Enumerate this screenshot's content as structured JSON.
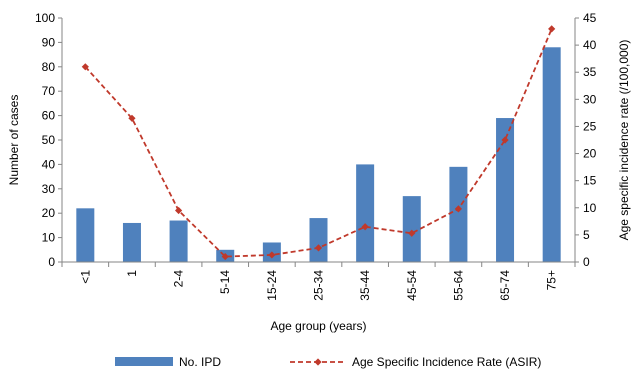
{
  "chart_data": {
    "type": "bar",
    "title": "",
    "xlabel": "Age group (years)",
    "ylabel": "Number of cases",
    "y2label": "Age specific incidence rate (/100,000)",
    "ylim": [
      0,
      100
    ],
    "y2lim": [
      0,
      45
    ],
    "yticks": [
      0,
      10,
      20,
      30,
      40,
      50,
      60,
      70,
      80,
      90,
      100
    ],
    "y2ticks": [
      0,
      5,
      10,
      15,
      20,
      25,
      30,
      35,
      40,
      45
    ],
    "categories": [
      "<1",
      "1",
      "2-4",
      "5-14",
      "15-24",
      "25-34",
      "35-44",
      "45-54",
      "55-64",
      "65-74",
      "75+"
    ],
    "series": [
      {
        "name": "No. IPD",
        "kind": "bar",
        "axis": "left",
        "color": "#4f81bd",
        "values": [
          22,
          16,
          17,
          5,
          8,
          18,
          40,
          27,
          39,
          59,
          88
        ]
      },
      {
        "name": "Age Specific Incidence Rate (ASIR)",
        "kind": "line",
        "axis": "right",
        "color": "#c0392b",
        "values": [
          36,
          26.5,
          9.5,
          1,
          1.3,
          2.6,
          6.5,
          5.3,
          9.8,
          22.5,
          43
        ]
      }
    ],
    "legend_position": "bottom",
    "grid": false
  }
}
